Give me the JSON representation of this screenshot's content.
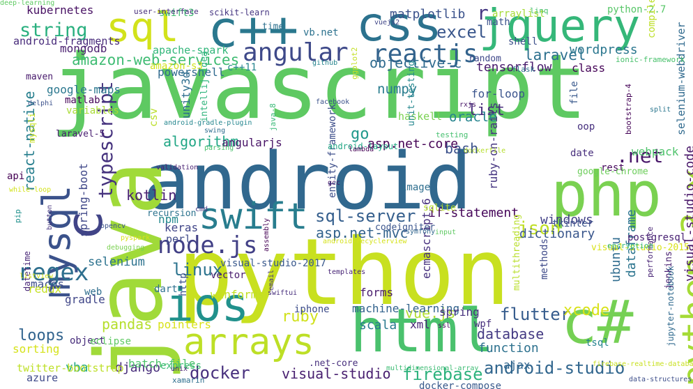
{
  "words": [
    {
      "text": "javascript",
      "color": "#5ec962"
    },
    {
      "text": "android",
      "color": "#31688e"
    },
    {
      "text": "python",
      "color": "#c8e020"
    },
    {
      "text": "java",
      "color": "#a0da39"
    },
    {
      "text": "c++",
      "color": "#2a788e"
    },
    {
      "text": "css",
      "color": "#2c728e"
    },
    {
      "text": "jquery",
      "color": "#35b779"
    },
    {
      "text": "sql",
      "color": "#d2e21b"
    },
    {
      "text": "php",
      "color": "#7ad151"
    },
    {
      "text": "c#",
      "color": "#75d054"
    },
    {
      "text": "html",
      "color": "#4ac16d"
    },
    {
      "text": "ios",
      "color": "#21918c"
    },
    {
      "text": "swift",
      "color": "#287d8e"
    },
    {
      "text": "arrays",
      "color": "#bddf26"
    },
    {
      "text": "mysql",
      "color": "#3b528b"
    },
    {
      "text": "c",
      "color": "#414487"
    },
    {
      "text": "python-3.x",
      "color": "#a5db36"
    },
    {
      "text": "angular",
      "color": "#3e4989"
    },
    {
      "text": "reactjs",
      "color": "#33638d"
    },
    {
      "text": "node.js",
      "color": "#424086"
    },
    {
      "text": "typescript",
      "color": "#46337e"
    },
    {
      "text": "string",
      "color": "#2ab07f"
    },
    {
      "text": "sql-server",
      "color": "#355f8d"
    },
    {
      "text": "json",
      "color": "#c0df25"
    },
    {
      "text": "r",
      "color": "#453882"
    },
    {
      "text": "excel",
      "color": "#39568c"
    },
    {
      "text": "laravel",
      "color": "#2d708e"
    },
    {
      "text": "amazon-web-services",
      "color": "#3fbc73"
    },
    {
      "text": "react-native",
      "color": "#277f8e"
    },
    {
      "text": "list",
      "color": "#472d7b"
    },
    {
      "text": "regex",
      "color": "#2e6f8e"
    },
    {
      "text": "linux",
      "color": "#2c738e"
    },
    {
      "text": "flutter",
      "color": "#365c8d"
    },
    {
      "text": "android-studio",
      "color": "#31668e"
    },
    {
      "text": "docker",
      "color": "#472f7d"
    },
    {
      "text": "firebase",
      "color": "#2db27d"
    },
    {
      "text": "ruby",
      "color": "#d0e11c"
    },
    {
      "text": "pandas",
      "color": "#b5de2b"
    },
    {
      "text": "kotlin",
      "color": "#482071"
    },
    {
      "text": ".net",
      "color": "#481769"
    },
    {
      "text": "visual-studio",
      "color": "#481f70"
    },
    {
      "text": "vue.js",
      "color": "#b0dd2f"
    },
    {
      "text": "xcode",
      "color": "#d8e219"
    },
    {
      "text": "loops",
      "color": "#32648e"
    },
    {
      "text": "database",
      "color": "#443a83"
    },
    {
      "text": "numpy",
      "color": "#287c8e"
    },
    {
      "text": "asp.net-mvc",
      "color": "#33638d"
    },
    {
      "text": "go",
      "color": "#1f988b"
    },
    {
      "text": "bash",
      "color": "#3b518b"
    },
    {
      "text": "oracle",
      "color": "#25848e"
    },
    {
      "text": "algorithm",
      "color": "#21a685"
    },
    {
      "text": "objective-c",
      "color": "#2f6b8e"
    },
    {
      "text": "wordpress",
      "color": "#2a768e"
    },
    {
      "text": "tensorflow",
      "color": "#481a6c"
    },
    {
      "text": "asp.net-core",
      "color": "#440154"
    },
    {
      "text": "selenium",
      "color": "#2c728e"
    },
    {
      "text": "dictionary",
      "color": "#39568c"
    },
    {
      "text": "windows",
      "color": "#424086"
    },
    {
      "text": "if-statement",
      "color": "#450559"
    },
    {
      "text": "visual-studio-code",
      "color": "#481668"
    },
    {
      "text": "spring-boot",
      "color": "#3f4788"
    },
    {
      "text": "django",
      "color": "#472c7a"
    },
    {
      "text": "vba",
      "color": "#22a884"
    },
    {
      "text": "scala",
      "color": "#297a8e"
    },
    {
      "text": "webpack",
      "color": "#4ec36b"
    },
    {
      "text": "function",
      "color": "#2d718e"
    },
    {
      "text": "ubuntu",
      "color": "#2f6c8e"
    },
    {
      "text": "dataframe",
      "color": "#2b748e"
    },
    {
      "text": "macos",
      "color": "#3d4e8a"
    },
    {
      "text": "angularjs",
      "color": "#481467"
    },
    {
      "text": "ecmascript-6",
      "color": "#46307e"
    },
    {
      "text": "ruby-on-rails",
      "color": "#453581"
    },
    {
      "text": "sorting",
      "color": "#d5e21a"
    },
    {
      "text": "google-maps",
      "color": "#2a778e"
    },
    {
      "text": "unity3d",
      "color": "#2e6d8e"
    },
    {
      "text": "for-loop",
      "color": "#3a548c"
    },
    {
      "text": "pointers",
      "color": "#d8e219"
    },
    {
      "text": "machine-learning",
      "color": "#33638d"
    },
    {
      "text": "xml",
      "color": "#482576"
    },
    {
      "text": "date",
      "color": "#472e7c"
    },
    {
      "text": "forms",
      "color": "#481b6d"
    },
    {
      "text": "redux",
      "color": "#c5e021"
    },
    {
      "text": "spring",
      "color": "#46327e"
    },
    {
      "text": "winforms",
      "color": "#c2df23"
    },
    {
      "text": "gradle",
      "color": "#404688"
    },
    {
      "text": "npm",
      "color": "#23898e"
    },
    {
      "text": "keras",
      "color": "#404588"
    },
    {
      "text": "class",
      "color": "#440256"
    },
    {
      "text": "mongodb",
      "color": "#481c6e"
    },
    {
      "text": "apache-spark",
      "color": "#32b67a"
    },
    {
      "text": "matplotlib",
      "color": "#3b528b"
    },
    {
      "text": "vb.net",
      "color": "#2c728e"
    },
    {
      "text": "kubernetes",
      "color": "#471063"
    },
    {
      "text": "python-2.7",
      "color": "#56c667"
    },
    {
      "text": "batch-file",
      "color": "#4ec36b"
    },
    {
      "text": "azure",
      "color": "#3e4989"
    },
    {
      "text": "twitter-bootstrap",
      "color": "#bddf26"
    },
    {
      "text": "ajax",
      "color": "#31668e"
    },
    {
      "text": "postgresql",
      "color": "#482173"
    },
    {
      "text": "tkinter",
      "color": "#3a538b"
    },
    {
      "text": "perl",
      "color": "#3e4a89"
    },
    {
      "text": "haskell",
      "color": "#7ad151"
    },
    {
      "text": "variables",
      "color": "#a8db34"
    },
    {
      "text": "csv",
      "color": "#bade28"
    },
    {
      "text": "powershell",
      "color": "#306a8e"
    },
    {
      "text": "c++11",
      "color": "#25858e"
    },
    {
      "text": "shell",
      "color": "#3c4f8a"
    },
    {
      "text": "math",
      "color": "#3b528b"
    },
    {
      "text": "random",
      "color": "#3f4889"
    },
    {
      "text": "maven",
      "color": "#481a6c"
    },
    {
      "text": "android-fragments",
      "color": "#472a7a"
    },
    {
      "text": "arraylist",
      "color": "#a5db36"
    },
    {
      "text": "jenkins",
      "color": "#482071"
    },
    {
      "text": "rest",
      "color": "#46085c"
    },
    {
      "text": "google-chrome",
      "color": "#6ccd5a"
    },
    {
      "text": "image",
      "color": "#2e6e8e"
    },
    {
      "text": "sqlite",
      "color": "#b8de29"
    },
    {
      "text": "web",
      "color": "#2e6d8e"
    },
    {
      "text": "dart",
      "color": "#2d708e"
    },
    {
      "text": "http",
      "color": "#3c508b"
    },
    {
      "text": "wpf",
      "color": "#472e7c"
    },
    {
      "text": "api",
      "color": "#440154"
    },
    {
      "text": "matlab",
      "color": "#450457"
    },
    {
      "text": "file",
      "color": "#38588c"
    },
    {
      "text": "oop",
      "color": "#46307e"
    },
    {
      "text": "methods",
      "color": "#3e4a89"
    },
    {
      "text": "iphone",
      "color": "#3d4d8a"
    },
    {
      "text": "object",
      "color": "#472d7b"
    },
    {
      "text": "tsql",
      "color": "#25838e"
    },
    {
      "text": "vector",
      "color": "#481b6d"
    },
    {
      "text": "eclipse",
      "color": "#5ec962"
    },
    {
      "text": "entity-framework",
      "color": "#3d4e8a"
    },
    {
      "text": "intellij-idea",
      "color": "#2fb47c"
    },
    {
      "text": "java-8",
      "color": "#38b977"
    },
    {
      "text": "unit-testing",
      "color": "#24878e"
    },
    {
      "text": "multithreading",
      "color": "#b8de29"
    },
    {
      "text": "docker-compose",
      "color": "#38598c"
    },
    {
      "text": "datetime",
      "color": "#482677"
    },
    {
      "text": "selenium-webdriver",
      "color": "#306a8e"
    },
    {
      "text": "android-layout",
      "color": "#22a785"
    },
    {
      "text": "express",
      "color": "#3dbc74"
    },
    {
      "text": "visual-studio-2017",
      "color": "#38588c"
    },
    {
      "text": "visual-studio-2015",
      "color": "#d8e219"
    },
    {
      "text": "laravel-5",
      "color": "#481f70"
    },
    {
      "text": "codeigniter",
      "color": "#3a548c"
    },
    {
      "text": "recursion",
      "color": "#2c738e"
    },
    {
      "text": ".net-core",
      "color": "#472f7d"
    },
    {
      "text": "mysqli",
      "color": "#c8e020"
    },
    {
      "text": "swift3",
      "color": "#40bd72"
    },
    {
      "text": "github",
      "color": "#25848e"
    },
    {
      "text": "testing",
      "color": "#46c06f"
    },
    {
      "text": "jupyter-notebook",
      "color": "#306a8e"
    },
    {
      "text": "performance",
      "color": "#482475"
    },
    {
      "text": "encryption",
      "color": "#31b57b"
    },
    {
      "text": "ionic-framework",
      "color": "#4ac16d"
    },
    {
      "text": "flask",
      "color": "#2e6f8e"
    },
    {
      "text": "bootstrap-4",
      "color": "#440256"
    },
    {
      "text": "compiler-errors",
      "color": "#bddf26"
    },
    {
      "text": "linq",
      "color": "#46c06f"
    },
    {
      "text": "scikit-learn",
      "color": "#453581"
    },
    {
      "text": "user-interface",
      "color": "#472d7b"
    },
    {
      "text": "time",
      "color": "#2d718e"
    },
    {
      "text": "vuejs2",
      "color": "#404688"
    },
    {
      "text": "rxjs",
      "color": "#481668"
    },
    {
      "text": "amazon-s3",
      "color": "#d2e21b"
    },
    {
      "text": "facebook",
      "color": "#3b528b"
    },
    {
      "text": "ggplot2",
      "color": "#c2df23"
    },
    {
      "text": "android-gradle-plugin",
      "color": "#24868e"
    },
    {
      "text": "swing",
      "color": "#2e6d8e"
    },
    {
      "text": "delphi",
      "color": "#3b518b"
    },
    {
      "text": "parsing",
      "color": "#4ac16d"
    },
    {
      "text": "validation",
      "color": "#482173"
    },
    {
      "text": "lambda",
      "color": "#440154"
    },
    {
      "text": "dockerfile",
      "color": "#b5de2b"
    },
    {
      "text": "split",
      "color": "#2a768e"
    },
    {
      "text": "gcc",
      "color": "#481467"
    },
    {
      "text": "cmd",
      "color": "#453882"
    },
    {
      "text": "while-loop",
      "color": "#d2e21b"
    },
    {
      "text": "pip",
      "color": "#21918c"
    },
    {
      "text": "button",
      "color": "#46337e"
    },
    {
      "text": "opencv",
      "color": "#3b528b"
    },
    {
      "text": "pyspark",
      "color": "#d8e219"
    },
    {
      "text": "assembly",
      "color": "#440154"
    },
    {
      "text": "android-recyclerview",
      "color": "#d5e21a"
    },
    {
      "text": "symfony",
      "color": "#31668e"
    },
    {
      "text": "input",
      "color": "#5ec962"
    },
    {
      "text": "debugging",
      "color": "#7ad151"
    },
    {
      "text": "listview",
      "color": "#d0e11c"
    },
    {
      "text": "templates",
      "color": "#482576"
    },
    {
      "text": "email",
      "color": "#46337e"
    },
    {
      "text": "swiftui",
      "color": "#472e7c"
    },
    {
      "text": "ssl",
      "color": "#46085c"
    },
    {
      "text": "multidimensional-array",
      "color": "#3dbc74"
    },
    {
      "text": "unix",
      "color": "#481f70"
    },
    {
      "text": "xamarin",
      "color": "#2e6f8e"
    },
    {
      "text": "firebase-realtime-database",
      "color": "#c8e020"
    },
    {
      "text": "data-structures",
      "color": "#3d4e8a"
    },
    {
      "text": "deep-learning",
      "color": "#5ec962"
    }
  ]
}
